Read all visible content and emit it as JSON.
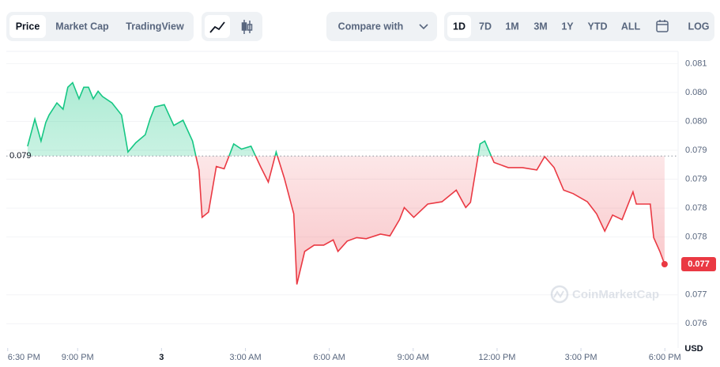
{
  "toolbar": {
    "views": [
      "Price",
      "Market Cap",
      "TradingView"
    ],
    "compare": "Compare with",
    "ranges": [
      "1D",
      "7D",
      "1M",
      "3M",
      "1Y",
      "YTD",
      "ALL"
    ],
    "log": "LOG"
  },
  "chart_data": {
    "type": "line",
    "currency": "USD",
    "watermark": "CoinMarketCap",
    "x": [
      1.21,
      1.47,
      1.69,
      1.86,
      1.98,
      2.26,
      2.48,
      2.65,
      2.82,
      3.05,
      3.22,
      3.39,
      3.56,
      3.73,
      3.89,
      4.23,
      4.57,
      4.8,
      5.08,
      5.42,
      5.59,
      5.76,
      6.1,
      6.44,
      6.77,
      7.11,
      7.34,
      7.45,
      7.68,
      7.96,
      8.24,
      8.58,
      8.86,
      9.2,
      9.54,
      9.82,
      10.1,
      10.39,
      10.73,
      10.84,
      11.12,
      11.46,
      11.8,
      12.14,
      12.31,
      12.64,
      12.98,
      13.32,
      13.83,
      14.17,
      14.51,
      14.68,
      15.02,
      15.52,
      16.03,
      16.54,
      16.88,
      17.05,
      17.39,
      17.56,
      17.89,
      18.4,
      18.91,
      19.42,
      19.7,
      20.04,
      20.38,
      20.72,
      21.23,
      21.56,
      21.85,
      22.13,
      22.47,
      22.86,
      22.98,
      23.48,
      23.6,
      23.82,
      23.99
    ],
    "series": [
      {
        "name": "Price",
        "color": "#16c784",
        "below_color": "#ea3943",
        "values": [
          0.07932,
          0.07979,
          0.07941,
          0.07973,
          0.07986,
          0.08007,
          0.07996,
          0.08034,
          0.08042,
          0.08014,
          0.08034,
          0.08034,
          0.08014,
          0.08027,
          0.08018,
          0.08007,
          0.07986,
          0.07922,
          0.07938,
          0.07952,
          0.07979,
          0.08,
          0.08004,
          0.07968,
          0.07977,
          0.07941,
          0.07891,
          0.07809,
          0.07818,
          0.07897,
          0.07893,
          0.07936,
          0.07927,
          0.07932,
          0.07897,
          0.0787,
          0.07922,
          0.07877,
          0.07815,
          0.07693,
          0.0775,
          0.07761,
          0.07761,
          0.0777,
          0.0775,
          0.07768,
          0.07774,
          0.07772,
          0.0778,
          0.07777,
          0.07805,
          0.07826,
          0.07809,
          0.07832,
          0.07836,
          0.07856,
          0.07826,
          0.07835,
          0.07936,
          0.07941,
          0.07904,
          0.07895,
          0.07895,
          0.07891,
          0.07914,
          0.07895,
          0.07856,
          0.0785,
          0.07836,
          0.07815,
          0.07785,
          0.07813,
          0.07805,
          0.07853,
          0.07832,
          0.07832,
          0.07774,
          0.0775,
          0.07728
        ]
      }
    ],
    "reference": {
      "value": 0.07915,
      "label": "0.079"
    },
    "current_label": "0.077",
    "xlim": [
      0.45,
      24.05
    ],
    "ylim": [
      0.07583,
      0.08096
    ],
    "xticks": [
      {
        "value": 0.5,
        "label": "6:30 PM"
      },
      {
        "value": 3,
        "label": "9:00 PM"
      },
      {
        "value": 6,
        "label": "3"
      },
      {
        "value": 9,
        "label": "3:00 AM"
      },
      {
        "value": 12,
        "label": "6:00 AM"
      },
      {
        "value": 15,
        "label": "9:00 AM"
      },
      {
        "value": 18,
        "label": "12:00 PM"
      },
      {
        "value": 21,
        "label": "3:00 PM"
      },
      {
        "value": 24,
        "label": "6:00 PM"
      }
    ],
    "yticks": [
      {
        "value": 0.08075,
        "label": "0.081"
      },
      {
        "value": 0.08025,
        "label": "0.080"
      },
      {
        "value": 0.07975,
        "label": "0.080"
      },
      {
        "value": 0.07925,
        "label": "0.079"
      },
      {
        "value": 0.07875,
        "label": "0.079"
      },
      {
        "value": 0.07825,
        "label": "0.078"
      },
      {
        "value": 0.07775,
        "label": "0.078"
      },
      {
        "value": 0.07675,
        "label": "0.077"
      },
      {
        "value": 0.07625,
        "label": "0.076"
      }
    ],
    "grid": true,
    "log_scale": false
  }
}
